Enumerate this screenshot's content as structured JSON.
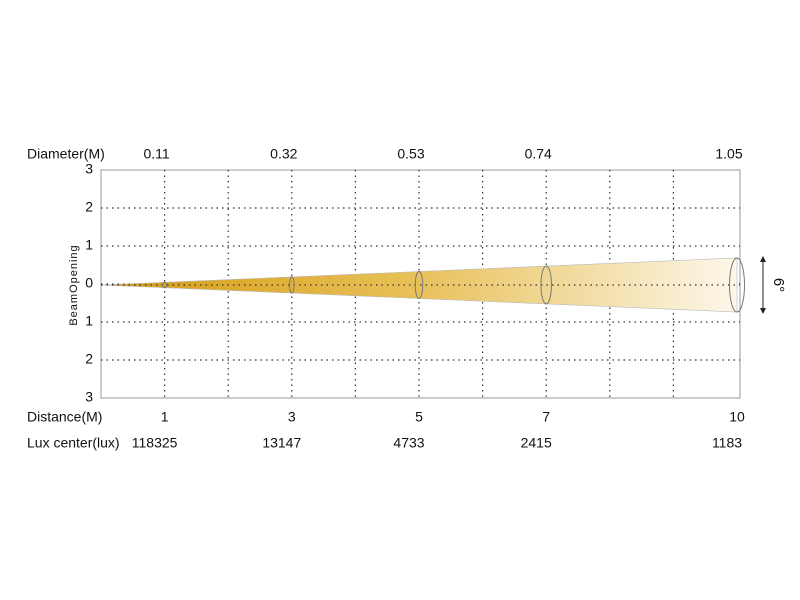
{
  "diameter": {
    "label": "Diameter(M)",
    "values": [
      "0.11",
      "0.32",
      "0.53",
      "0.74",
      "1.05"
    ]
  },
  "distance": {
    "label": "Distance(M)",
    "values": [
      1,
      3,
      5,
      7,
      10
    ]
  },
  "lux_center": {
    "label": "Lux center(lux)",
    "values": [
      118325,
      13147,
      4733,
      2415,
      1183
    ]
  },
  "y_axis": {
    "title": "BeamOpening",
    "ticks": [
      "3",
      "2",
      "1",
      "0",
      "1",
      "2",
      "3"
    ]
  },
  "beam_angle": "6°"
}
